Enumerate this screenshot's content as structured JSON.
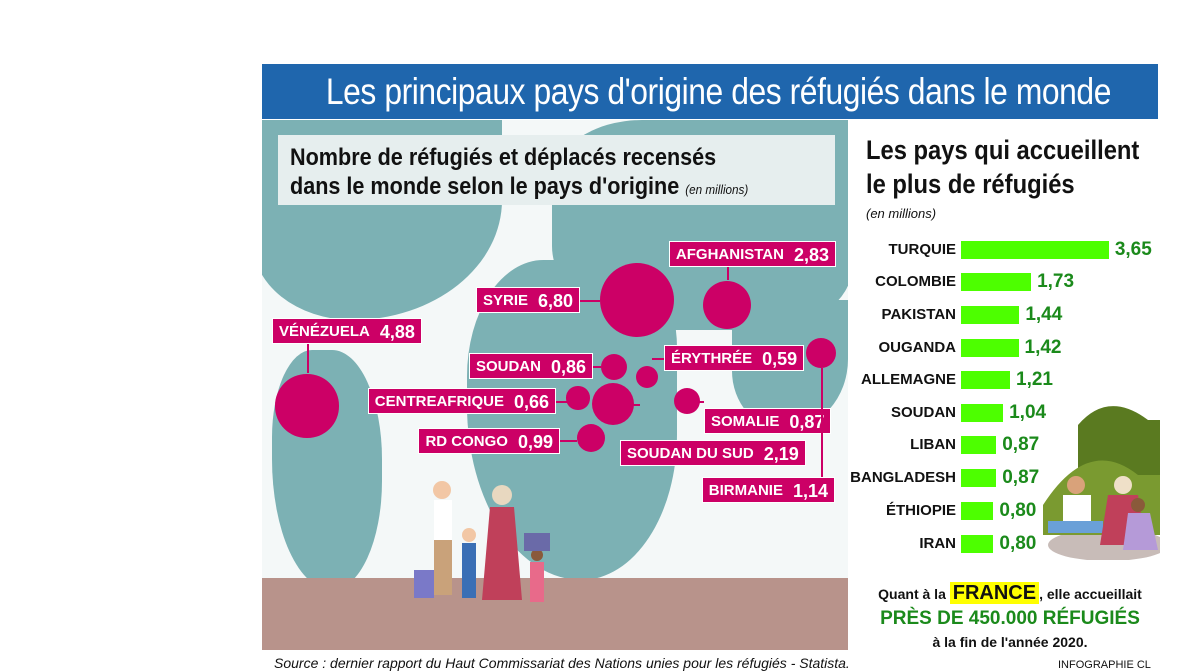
{
  "title": "Les principaux pays d'origine des réfugiés dans le monde",
  "map": {
    "subtitle_line1": "Nombre de réfugiés et déplacés recensés",
    "subtitle_line2": "dans le monde selon le pays d'origine",
    "unit": "(en millions)"
  },
  "host": {
    "title_line1": "Les pays qui accueillent",
    "title_line2": "le plus de réfugiés",
    "unit": "(en millions)"
  },
  "note": {
    "prefix": "Quant à la",
    "france": "FRANCE",
    "suffix": ", elle accueillait",
    "highlight": "PRÈS DE 450.000 RÉFUGIÉS",
    "end": "à la fin de l'année 2020."
  },
  "source": "Source : dernier rapport du Haut Commissariat des Nations unies pour les réfugiés - Statista.",
  "credit": "INFOGRAPHIE CL",
  "colors": {
    "title": "#1f66ad",
    "bubble": "#cc0066",
    "bar": "#4dff00",
    "value": "#1b8a1b",
    "land": "#7cb1b4"
  },
  "chart_data": [
    {
      "type": "scatter",
      "title": "Nombre de réfugiés et déplacés recensés dans le monde selon le pays d'origine (en millions)",
      "points": [
        {
          "country": "AFGHANISTAN",
          "label": "2,83",
          "value": 2.83
        },
        {
          "country": "SYRIE",
          "label": "6,80",
          "value": 6.8
        },
        {
          "country": "VÉNÉZUELA",
          "label": "4,88",
          "value": 4.88
        },
        {
          "country": "SOUDAN",
          "label": "0,86",
          "value": 0.86
        },
        {
          "country": "ÉRYTHRÉE",
          "label": "0,59",
          "value": 0.59
        },
        {
          "country": "CENTREAFRIQUE",
          "label": "0,66",
          "value": 0.66
        },
        {
          "country": "SOMALIE",
          "label": "0,87",
          "value": 0.87
        },
        {
          "country": "RD CONGO",
          "label": "0,99",
          "value": 0.99
        },
        {
          "country": "SOUDAN DU SUD",
          "label": "2,19",
          "value": 2.19
        },
        {
          "country": "BIRMANIE",
          "label": "1,14",
          "value": 1.14
        }
      ]
    },
    {
      "type": "bar",
      "title": "Les pays qui accueillent le plus de réfugiés (en millions)",
      "categories": [
        "TURQUIE",
        "COLOMBIE",
        "PAKISTAN",
        "OUGANDA",
        "ALLEMAGNE",
        "SOUDAN",
        "LIBAN",
        "BANGLADESH",
        "ÉTHIOPIE",
        "IRAN"
      ],
      "values": [
        3.65,
        1.73,
        1.44,
        1.42,
        1.21,
        1.04,
        0.87,
        0.87,
        0.8,
        0.8
      ],
      "labels": [
        "3,65",
        "1,73",
        "1,44",
        "1,42",
        "1,21",
        "1,04",
        "0,87",
        "0,87",
        "0,80",
        "0,80"
      ]
    }
  ]
}
